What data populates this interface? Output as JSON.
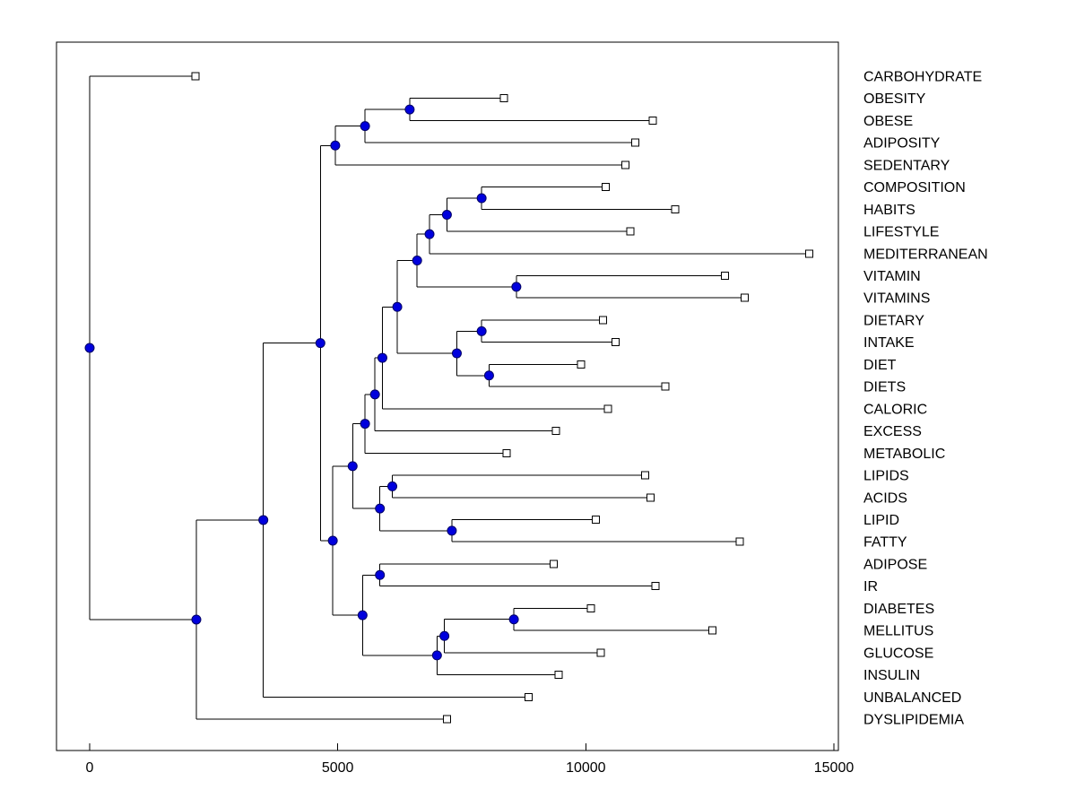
{
  "figure": {
    "background": "#ffffff",
    "plot_background": "#ffffff",
    "border_color": "#000000"
  },
  "chart_data": {
    "type": "dendrogram",
    "orientation": "horizontal, root at left, leaf labels on right",
    "title": "",
    "xlabel": "",
    "ylabel": "",
    "grid": false,
    "x_ticks": [
      0,
      5000,
      10000,
      15000
    ],
    "xlim": [
      -670,
      15100
    ],
    "line_color": "#000000",
    "node_marker": {
      "shape": "circle",
      "fill": "#0000dd",
      "edge": "#000066",
      "radius": 5
    },
    "leaf_marker": {
      "shape": "square",
      "fill": "#ffffff",
      "edge": "#000000",
      "size": 8
    },
    "leaf_order": [
      "CARBOHYDRATE",
      "OBESITY",
      "OBESE",
      "ADIPOSITY",
      "SEDENTARY",
      "COMPOSITION",
      "HABITS",
      "LIFESTYLE",
      "MEDITERRANEAN",
      "VITAMIN",
      "VITAMINS",
      "DIETARY",
      "INTAKE",
      "DIET",
      "DIETS",
      "CALORIC",
      "EXCESS",
      "METABOLIC",
      "LIPIDS",
      "ACIDS",
      "LIPID",
      "FATTY",
      "ADIPOSE",
      "IR",
      "DIABETES",
      "MELLITUS",
      "GLUCOSE",
      "INSULIN",
      "UNBALANCED",
      "DYSLIPIDEMIA"
    ],
    "leaf_values": {
      "CARBOHYDRATE": 2130,
      "OBESITY": 8350,
      "OBESE": 11350,
      "ADIPOSITY": 11000,
      "SEDENTARY": 10800,
      "COMPOSITION": 10400,
      "HABITS": 11800,
      "LIFESTYLE": 10900,
      "MEDITERRANEAN": 14500,
      "VITAMIN": 12800,
      "VITAMINS": 13200,
      "DIETARY": 10350,
      "INTAKE": 10600,
      "DIET": 9900,
      "DIETS": 11600,
      "CALORIC": 10450,
      "EXCESS": 9400,
      "METABOLIC": 8400,
      "LIPIDS": 11200,
      "ACIDS": 11300,
      "LIPID": 10200,
      "FATTY": 13100,
      "ADIPOSE": 9350,
      "IR": 11400,
      "DIABETES": 10100,
      "MELLITUS": 12550,
      "GLUCOSE": 10300,
      "INSULIN": 9450,
      "UNBALANCED": 8850,
      "DYSLIPIDEMIA": 7200
    },
    "tree": {
      "v": 0,
      "c": [
        {
          "leaf": "CARBOHYDRATE",
          "v": 2130
        },
        {
          "v": 2150,
          "c": [
            {
              "v": 3500,
              "c": [
                {
                  "v": 4650,
                  "c": [
                    {
                      "v": 4950,
                      "c": [
                        {
                          "v": 5550,
                          "c": [
                            {
                              "v": 6450,
                              "c": [
                                {
                                  "leaf": "OBESITY",
                                  "v": 8350
                                },
                                {
                                  "leaf": "OBESE",
                                  "v": 11350
                                }
                              ]
                            },
                            {
                              "leaf": "ADIPOSITY",
                              "v": 11000
                            }
                          ]
                        },
                        {
                          "leaf": "SEDENTARY",
                          "v": 10800
                        }
                      ]
                    },
                    {
                      "v": 4900,
                      "c": [
                        {
                          "v": 5300,
                          "c": [
                            {
                              "v": 5550,
                              "c": [
                                {
                                  "v": 5750,
                                  "c": [
                                    {
                                      "v": 5900,
                                      "c": [
                                        {
                                          "v": 6200,
                                          "c": [
                                            {
                                              "v": 6600,
                                              "c": [
                                                {
                                                  "v": 6850,
                                                  "c": [
                                                    {
                                                      "v": 7200,
                                                      "c": [
                                                        {
                                                          "v": 7900,
                                                          "c": [
                                                            {
                                                              "leaf": "COMPOSITION",
                                                              "v": 10400
                                                            },
                                                            {
                                                              "leaf": "HABITS",
                                                              "v": 11800
                                                            }
                                                          ]
                                                        },
                                                        {
                                                          "leaf": "LIFESTYLE",
                                                          "v": 10900
                                                        }
                                                      ]
                                                    },
                                                    {
                                                      "leaf": "MEDITERRANEAN",
                                                      "v": 14500
                                                    }
                                                  ]
                                                },
                                                {
                                                  "v": 8600,
                                                  "c": [
                                                    {
                                                      "leaf": "VITAMIN",
                                                      "v": 12800
                                                    },
                                                    {
                                                      "leaf": "VITAMINS",
                                                      "v": 13200
                                                    }
                                                  ]
                                                }
                                              ]
                                            },
                                            {
                                              "v": 7400,
                                              "c": [
                                                {
                                                  "v": 7900,
                                                  "c": [
                                                    {
                                                      "leaf": "DIETARY",
                                                      "v": 10350
                                                    },
                                                    {
                                                      "leaf": "INTAKE",
                                                      "v": 10600
                                                    }
                                                  ]
                                                },
                                                {
                                                  "v": 8050,
                                                  "c": [
                                                    {
                                                      "leaf": "DIET",
                                                      "v": 9900
                                                    },
                                                    {
                                                      "leaf": "DIETS",
                                                      "v": 11600
                                                    }
                                                  ]
                                                }
                                              ]
                                            }
                                          ]
                                        },
                                        {
                                          "leaf": "CALORIC",
                                          "v": 10450
                                        }
                                      ]
                                    },
                                    {
                                      "leaf": "EXCESS",
                                      "v": 9400
                                    }
                                  ]
                                },
                                {
                                  "leaf": "METABOLIC",
                                  "v": 8400
                                }
                              ]
                            },
                            {
                              "v": 5850,
                              "c": [
                                {
                                  "v": 6100,
                                  "c": [
                                    {
                                      "leaf": "LIPIDS",
                                      "v": 11200
                                    },
                                    {
                                      "leaf": "ACIDS",
                                      "v": 11300
                                    }
                                  ]
                                },
                                {
                                  "v": 7300,
                                  "c": [
                                    {
                                      "leaf": "LIPID",
                                      "v": 10200
                                    },
                                    {
                                      "leaf": "FATTY",
                                      "v": 13100
                                    }
                                  ]
                                }
                              ]
                            }
                          ]
                        },
                        {
                          "v": 5500,
                          "c": [
                            {
                              "v": 5850,
                              "c": [
                                {
                                  "leaf": "ADIPOSE",
                                  "v": 9350
                                },
                                {
                                  "leaf": "IR",
                                  "v": 11400
                                }
                              ]
                            },
                            {
                              "v": 7000,
                              "c": [
                                {
                                  "v": 7150,
                                  "c": [
                                    {
                                      "v": 8550,
                                      "c": [
                                        {
                                          "leaf": "DIABETES",
                                          "v": 10100
                                        },
                                        {
                                          "leaf": "MELLITUS",
                                          "v": 12550
                                        }
                                      ]
                                    },
                                    {
                                      "leaf": "GLUCOSE",
                                      "v": 10300
                                    }
                                  ]
                                },
                                {
                                  "leaf": "INSULIN",
                                  "v": 9450
                                }
                              ]
                            }
                          ]
                        }
                      ]
                    }
                  ]
                },
                {
                  "leaf": "UNBALANCED",
                  "v": 8850
                }
              ]
            },
            {
              "leaf": "DYSLIPIDEMIA",
              "v": 7200
            }
          ]
        }
      ]
    }
  }
}
